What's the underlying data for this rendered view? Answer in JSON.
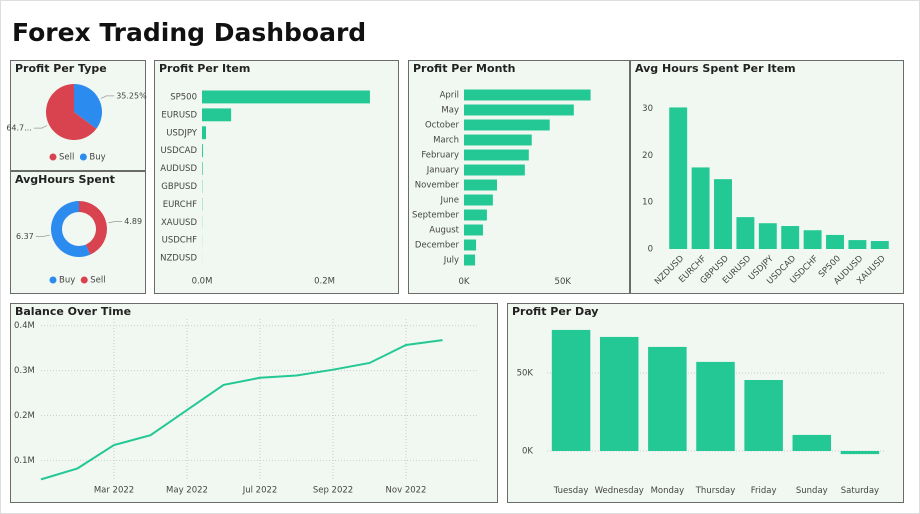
{
  "title": "Forex Trading Dashboard",
  "chart_data": [
    {
      "type": "pie",
      "title": "Profit Per Type",
      "categories": [
        "Sell",
        "Buy"
      ],
      "values": [
        64.75,
        35.25
      ],
      "value_labels": [
        "64.7...",
        "35.25%"
      ],
      "colors": [
        "#d9434f",
        "#2b8bef"
      ]
    },
    {
      "type": "donut",
      "title": "AvgHours Spent",
      "categories": [
        "Buy",
        "Sell"
      ],
      "values": [
        6.37,
        4.89
      ],
      "colors": [
        "#2b8bef",
        "#d9434f"
      ]
    },
    {
      "type": "hbar",
      "title": "Profit Per Item",
      "categories": [
        "SP500",
        "EURUSD",
        "USDJPY",
        "USDCAD",
        "AUDUSD",
        "GBPUSD",
        "EURCHF",
        "XAUUSD",
        "USDCHF",
        "NZDUSD"
      ],
      "values": [
        274000,
        47500,
        6500,
        1500,
        1000,
        500,
        500,
        300,
        200,
        100
      ],
      "color": "#23c895",
      "xlim": [
        0,
        310000
      ],
      "xticks": [
        {
          "value": 0,
          "label": "0.0M"
        },
        {
          "value": 200000,
          "label": "0.2M"
        }
      ]
    },
    {
      "type": "hbar",
      "title": "Profit Per Month",
      "categories": [
        "April",
        "May",
        "October",
        "March",
        "February",
        "January",
        "November",
        "June",
        "September",
        "August",
        "December",
        "July"
      ],
      "values": [
        64100,
        55600,
        43400,
        34300,
        32800,
        30800,
        16700,
        14600,
        11600,
        9600,
        6100,
        5600
      ],
      "color": "#23c895",
      "xlim": [
        0,
        80000
      ],
      "xticks": [
        {
          "value": 0,
          "label": "0K"
        },
        {
          "value": 50000,
          "label": "50K"
        }
      ]
    },
    {
      "type": "bar",
      "title": "Avg Hours Spent Per Item",
      "categories": [
        "NZDUSD",
        "EURCHF",
        "GBPUSD",
        "EURUSD",
        "USDJPY",
        "USDCAD",
        "USDCHF",
        "SP500",
        "AUDUSD",
        "XAUUSD"
      ],
      "values": [
        30.2,
        17.4,
        14.9,
        6.8,
        5.5,
        4.9,
        4.0,
        3.0,
        1.9,
        1.7
      ],
      "color": "#23c895",
      "ylim": [
        0,
        32
      ],
      "yticks": [
        0,
        10,
        20,
        30
      ],
      "grid": false
    },
    {
      "type": "line",
      "title": "Balance Over Time",
      "x": [
        "2022-01",
        "2022-02",
        "2022-03",
        "2022-04",
        "2022-05",
        "2022-06",
        "2022-07",
        "2022-08",
        "2022-09",
        "2022-10",
        "2022-11",
        "2022-12"
      ],
      "values": [
        57500,
        82000,
        134000,
        156000,
        212000,
        268000,
        284000,
        289000,
        302000,
        317000,
        357000,
        368000
      ],
      "color": "#23c895",
      "xlim": [
        "2022-01",
        "2023-01"
      ],
      "xticks": [
        {
          "value": "2022-03",
          "label": "Mar 2022"
        },
        {
          "value": "2022-05",
          "label": "May 2022"
        },
        {
          "value": "2022-07",
          "label": "Jul 2022"
        },
        {
          "value": "2022-09",
          "label": "Sep 2022"
        },
        {
          "value": "2022-11",
          "label": "Nov 2022"
        }
      ],
      "ylim": [
        45000,
        415000
      ],
      "yticks": [
        {
          "value": 100000,
          "label": "0.1M"
        },
        {
          "value": 200000,
          "label": "0.2M"
        },
        {
          "value": 300000,
          "label": "0.3M"
        },
        {
          "value": 400000,
          "label": "0.4M"
        }
      ],
      "grid": true
    },
    {
      "type": "bar",
      "title": "Profit Per Day",
      "categories": [
        "Tuesday",
        "Wednesday",
        "Monday",
        "Thursday",
        "Friday",
        "Sunday",
        "Saturday"
      ],
      "values": [
        77600,
        73100,
        66700,
        57100,
        45500,
        10300,
        -2000
      ],
      "color": "#23c895",
      "ylim": [
        -12000,
        83000
      ],
      "yticks": [
        {
          "value": 0,
          "label": "0K"
        },
        {
          "value": 50000,
          "label": "50K"
        }
      ],
      "grid": true
    }
  ]
}
